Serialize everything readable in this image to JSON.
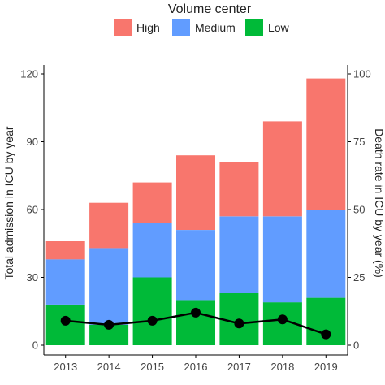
{
  "chart_data": {
    "type": "bar",
    "stacked": true,
    "categories": [
      "2013",
      "2014",
      "2015",
      "2016",
      "2017",
      "2018",
      "2019"
    ],
    "legend": {
      "title": "Volume center",
      "placement": "top",
      "entries": [
        "High",
        "Medium",
        "Low"
      ]
    },
    "series": [
      {
        "name": "Low",
        "color": "#00BA38",
        "values": [
          18,
          9,
          30,
          20,
          23,
          19,
          21
        ]
      },
      {
        "name": "Medium",
        "color": "#619CFF",
        "values": [
          20,
          34,
          24,
          31,
          34,
          38,
          39
        ]
      },
      {
        "name": "High",
        "color": "#F8766D",
        "values": [
          8,
          20,
          18,
          33,
          24,
          42,
          58
        ]
      }
    ],
    "line": {
      "axis": "secondary",
      "color": "#000000",
      "values": [
        9,
        7.5,
        9,
        12,
        8,
        9.5,
        4
      ]
    },
    "xlabel": "",
    "ylabel": "Total admission in ICU by year",
    "y2label": "Death rate in ICU by year (%)",
    "ylim": [
      0,
      120
    ],
    "y2lim": [
      0,
      100
    ],
    "yticks": [
      "0",
      "30",
      "60",
      "90",
      "120"
    ],
    "y2ticks": [
      "0",
      "25",
      "50",
      "75",
      "100"
    ],
    "grid": false
  }
}
